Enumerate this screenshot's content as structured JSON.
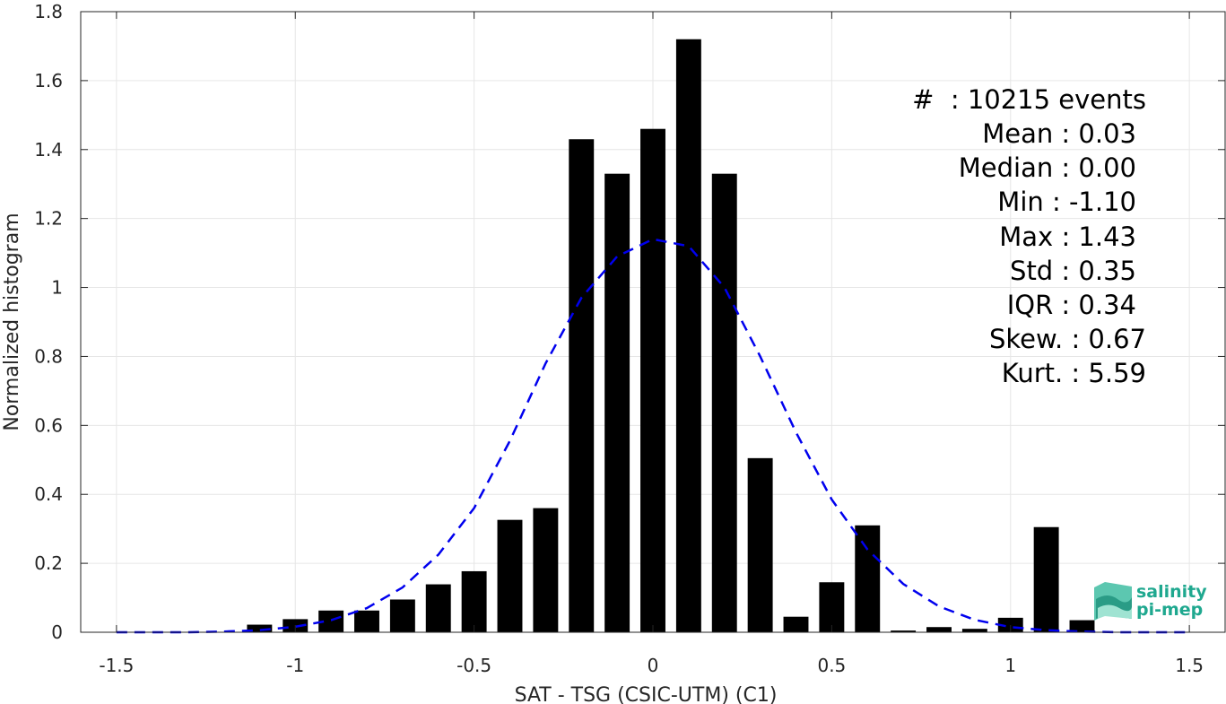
{
  "chart_data": {
    "type": "bar",
    "xlabel": "SAT - TSG (CSIC-UTM) (C1)",
    "ylabel": "Normalized histogram",
    "xlim": [
      -1.6,
      1.6
    ],
    "ylim": [
      0,
      1.8
    ],
    "xticks": [
      -1.5,
      -1,
      -0.5,
      0,
      0.5,
      1,
      1.5
    ],
    "xtick_labels": [
      "-1.5",
      "-1",
      "-0.5",
      "0",
      "0.5",
      "1",
      "1.5"
    ],
    "yticks": [
      0,
      0.2,
      0.4,
      0.6,
      0.8,
      1,
      1.2,
      1.4,
      1.6,
      1.8
    ],
    "ytick_labels": [
      "0",
      "0.2",
      "0.4",
      "0.6",
      "0.8",
      "1",
      "1.2",
      "1.4",
      "1.6",
      "1.8"
    ],
    "grid": true,
    "bar_width": 0.07,
    "bars": [
      {
        "x": -1.5,
        "y": 0.0
      },
      {
        "x": -1.4,
        "y": 0.0
      },
      {
        "x": -1.3,
        "y": 0.0
      },
      {
        "x": -1.2,
        "y": 0.0
      },
      {
        "x": -1.1,
        "y": 0.022
      },
      {
        "x": -1.0,
        "y": 0.038
      },
      {
        "x": -0.9,
        "y": 0.063
      },
      {
        "x": -0.8,
        "y": 0.063
      },
      {
        "x": -0.7,
        "y": 0.095
      },
      {
        "x": -0.6,
        "y": 0.139
      },
      {
        "x": -0.5,
        "y": 0.177
      },
      {
        "x": -0.4,
        "y": 0.326
      },
      {
        "x": -0.3,
        "y": 0.36
      },
      {
        "x": -0.2,
        "y": 1.43
      },
      {
        "x": -0.1,
        "y": 1.33
      },
      {
        "x": 0.0,
        "y": 1.46
      },
      {
        "x": 0.1,
        "y": 1.72
      },
      {
        "x": 0.2,
        "y": 1.33
      },
      {
        "x": 0.3,
        "y": 0.505
      },
      {
        "x": 0.4,
        "y": 0.045
      },
      {
        "x": 0.5,
        "y": 0.145
      },
      {
        "x": 0.6,
        "y": 0.31
      },
      {
        "x": 0.7,
        "y": 0.005
      },
      {
        "x": 0.8,
        "y": 0.015
      },
      {
        "x": 0.9,
        "y": 0.01
      },
      {
        "x": 1.0,
        "y": 0.042
      },
      {
        "x": 1.1,
        "y": 0.305
      },
      {
        "x": 1.2,
        "y": 0.035
      }
    ],
    "fit_curve": {
      "style": "dashed",
      "x": [
        -1.5,
        -1.4,
        -1.3,
        -1.2,
        -1.1,
        -1.0,
        -0.9,
        -0.8,
        -0.7,
        -0.6,
        -0.5,
        -0.4,
        -0.3,
        -0.2,
        -0.1,
        0.0,
        0.1,
        0.2,
        0.3,
        0.4,
        0.5,
        0.6,
        0.7,
        0.8,
        0.9,
        1.0,
        1.1,
        1.2,
        1.3,
        1.4,
        1.5
      ],
      "y": [
        0.0,
        0.0,
        0.0,
        0.002,
        0.006,
        0.016,
        0.035,
        0.07,
        0.13,
        0.225,
        0.36,
        0.555,
        0.78,
        0.97,
        1.09,
        1.14,
        1.12,
        1.0,
        0.8,
        0.58,
        0.385,
        0.24,
        0.14,
        0.075,
        0.036,
        0.015,
        0.006,
        0.002,
        0.0,
        0.0,
        0.0
      ]
    },
    "colors": {
      "bars": "#000000",
      "fit": "#0000ee",
      "grid": "#e6e6e6",
      "axis": "#262626"
    }
  },
  "stats": {
    "count": "#  : 10215 events",
    "mean": "Mean : 0.03",
    "median": "Median : 0.00",
    "min": "Min : -1.10",
    "max": "Max : 1.43",
    "std": "Std : 0.35",
    "iqr": "IQR : 0.34",
    "skew": "Skew. : 0.67",
    "kurt": "Kurt. : 5.59"
  },
  "logo": {
    "line1": "salinity",
    "line2": "pi-mep",
    "icon": "salinity-waves-logo-icon",
    "color": "#1fa88f"
  }
}
